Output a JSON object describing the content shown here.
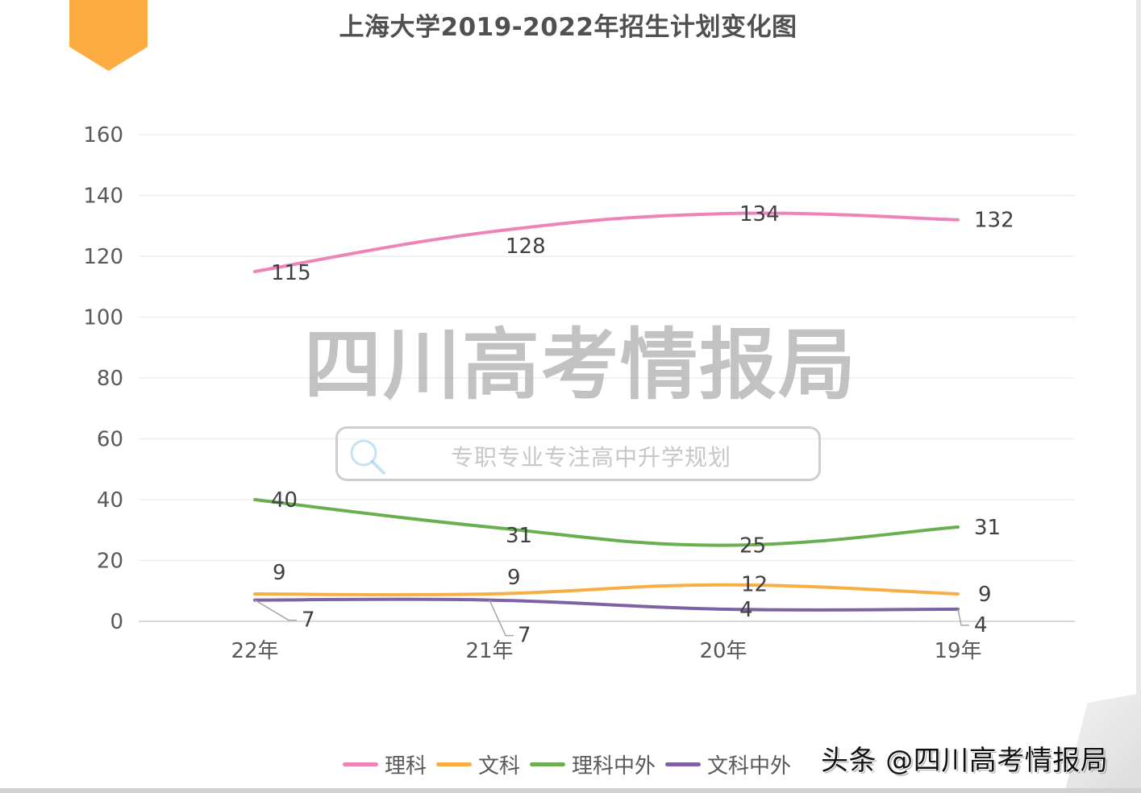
{
  "title": "上海大学2019-2022年招生计划变化图",
  "watermark": {
    "main": "四川高考情报局",
    "search_text": "专职专业专注高中升学规划"
  },
  "credit": "头条 @四川高考情报局",
  "colors": {
    "accent_tab": "#FBAD41",
    "grid": "#EDEDED",
    "axis": "#D9D9D9"
  },
  "legend": [
    {
      "label": "理科",
      "color": "#EE83B7"
    },
    {
      "label": "文科",
      "color": "#F6AE45"
    },
    {
      "label": "理科中外",
      "color": "#6AAF4F"
    },
    {
      "label": "文科中外",
      "color": "#7E62A3"
    }
  ],
  "chart_data": {
    "type": "line",
    "title": "上海大学2019-2022年招生计划变化图",
    "xlabel": "",
    "ylabel": "",
    "categories": [
      "22年",
      "21年",
      "20年",
      "19年"
    ],
    "ylim": [
      0,
      160
    ],
    "yticks": [
      0,
      20,
      40,
      60,
      80,
      100,
      120,
      140,
      160
    ],
    "grid": true,
    "legend_position": "bottom",
    "smooth": true,
    "series": [
      {
        "name": "理科",
        "values": [
          115,
          128,
          134,
          132
        ],
        "color": "#EE83B7"
      },
      {
        "name": "文科",
        "values": [
          9,
          9,
          12,
          9
        ],
        "color": "#F6AE45"
      },
      {
        "name": "理科中外",
        "values": [
          40,
          31,
          25,
          31
        ],
        "color": "#6AAF4F"
      },
      {
        "name": "文科中外",
        "values": [
          7,
          7,
          4,
          4
        ],
        "color": "#7E62A3"
      }
    ]
  }
}
